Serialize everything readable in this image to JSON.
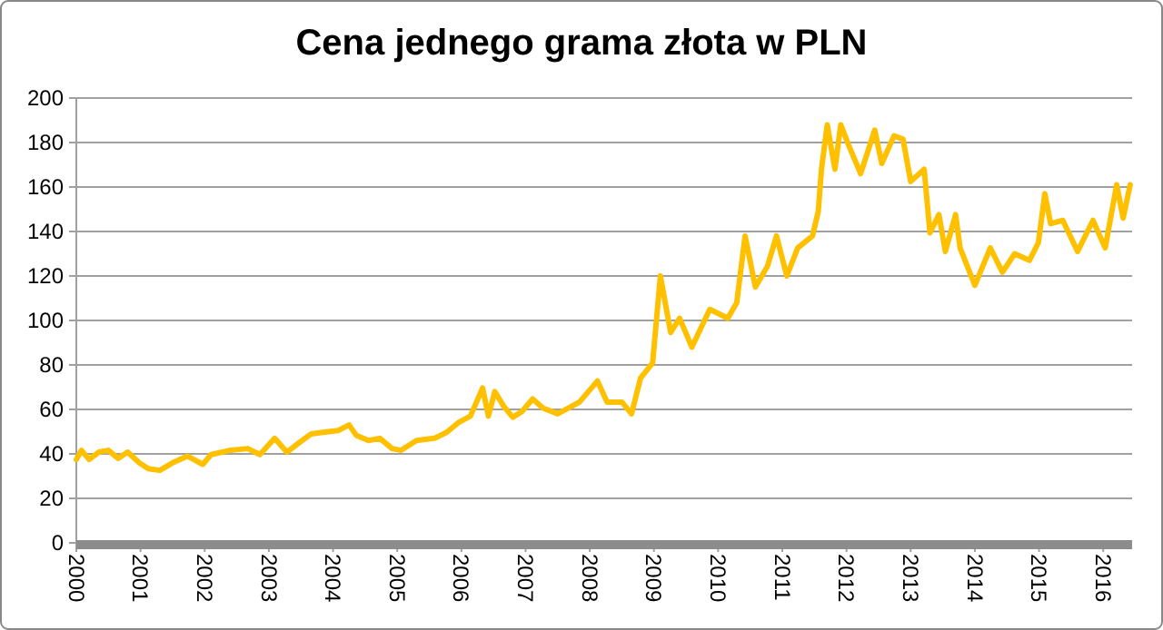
{
  "chart_data": {
    "type": "line",
    "title": "Cena jednego grama złota w PLN",
    "x": [
      2000,
      2000.08,
      2000.2,
      2000.35,
      2000.5,
      2000.65,
      2000.8,
      2000.98,
      2001.12,
      2001.3,
      2001.5,
      2001.73,
      2001.97,
      2002.1,
      2002.39,
      2002.67,
      2002.86,
      2003.09,
      2003.28,
      2003.47,
      2003.66,
      2003.84,
      2004.08,
      2004.25,
      2004.36,
      2004.55,
      2004.73,
      2004.92,
      2005.06,
      2005.3,
      2005.58,
      2005.77,
      2005.95,
      2006.14,
      2006.33,
      2006.42,
      2006.52,
      2006.66,
      2006.8,
      2006.94,
      2007.11,
      2007.27,
      2007.5,
      2007.84,
      2008.12,
      2008.27,
      2008.5,
      2008.65,
      2008.79,
      2008.98,
      2009.1,
      2009.26,
      2009.4,
      2009.59,
      2009.87,
      2010.15,
      2010.29,
      2010.42,
      2010.58,
      2010.77,
      2010.91,
      2011.07,
      2011.24,
      2011.47,
      2011.56,
      2011.61,
      2011.7,
      2011.82,
      2011.91,
      2012.03,
      2012.22,
      2012.44,
      2012.55,
      2012.74,
      2012.88,
      2013.0,
      2013.21,
      2013.3,
      2013.44,
      2013.54,
      2013.7,
      2013.77,
      2014.0,
      2014.24,
      2014.43,
      2014.62,
      2014.85,
      2014.99,
      2015.09,
      2015.18,
      2015.37,
      2015.6,
      2015.84,
      2016.03,
      2016.21,
      2016.31,
      2016.42
    ],
    "series": [
      {
        "color": "#ffc000",
        "values": [
          37.5,
          41.6,
          37.5,
          40.8,
          41.6,
          38,
          40.8,
          36,
          33.4,
          32.6,
          36,
          39,
          35.3,
          39.7,
          41.6,
          42.4,
          39.7,
          47,
          40.8,
          45,
          49,
          49.7,
          50.5,
          53,
          48.4,
          46,
          47,
          42.4,
          41.6,
          46,
          47,
          49.7,
          54,
          57,
          69.6,
          57,
          68,
          61.4,
          56.5,
          59,
          64.7,
          60.6,
          58,
          63.3,
          72.8,
          63.3,
          63.3,
          58,
          74,
          81,
          120,
          94.6,
          101,
          88,
          105,
          101,
          108,
          138,
          115,
          124.5,
          138,
          120,
          132.6,
          138,
          149,
          168,
          188,
          168,
          188,
          179,
          166,
          185.6,
          170.6,
          183,
          181.5,
          162.5,
          168,
          139.4,
          147.6,
          131,
          147.6,
          132.6,
          115.8,
          132.6,
          121.7,
          130,
          127,
          135,
          157,
          143.5,
          145,
          131,
          145,
          132.6,
          161,
          146,
          161
        ]
      }
    ],
    "xlim": [
      2000,
      2016.45
    ],
    "xticks": [
      2000,
      2001,
      2002,
      2003,
      2004,
      2005,
      2006,
      2007,
      2008,
      2009,
      2010,
      2011,
      2012,
      2013,
      2014,
      2015,
      2016
    ],
    "ylim": [
      0,
      200
    ],
    "yticks": [
      0,
      20,
      40,
      60,
      80,
      100,
      120,
      140,
      160,
      180,
      200
    ],
    "grid": "y"
  }
}
